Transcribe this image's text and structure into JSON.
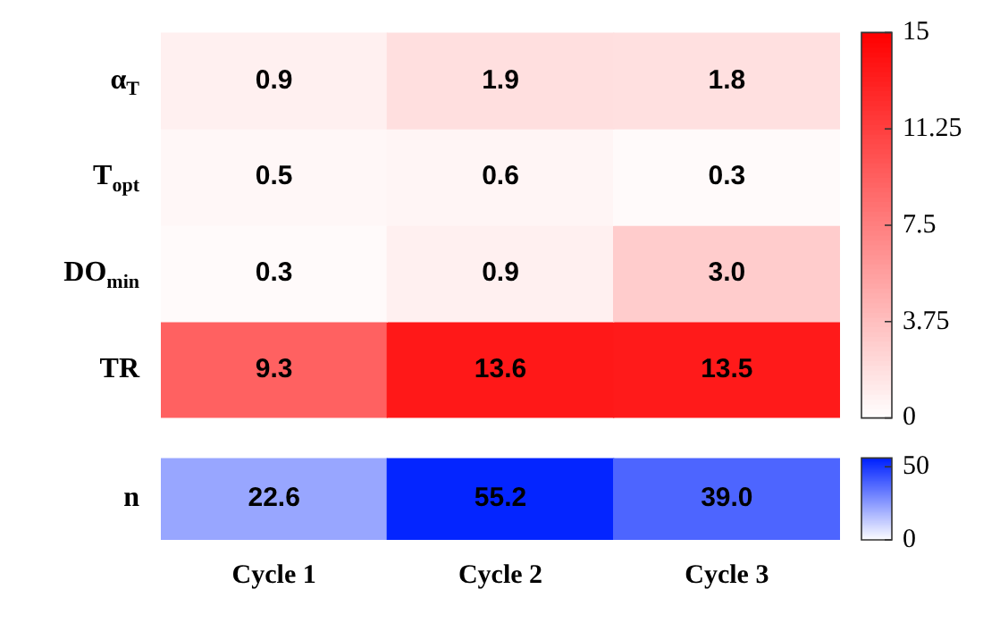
{
  "chart_data": [
    {
      "type": "heatmap",
      "categories": [
        null,
        null,
        null
      ],
      "y_categories": [
        "α$_{T}$",
        "T$_{opt}$",
        "DO$_{min}$",
        "TR"
      ],
      "cells": [
        [
          0.9,
          1.9,
          1.8
        ],
        [
          0.5,
          0.6,
          0.3
        ],
        [
          0.3,
          0.9,
          3.0
        ],
        [
          9.3,
          13.6,
          13.5
        ]
      ],
      "cell_labels": [
        [
          "0.9",
          "1.9",
          "1.8"
        ],
        [
          "0.5",
          "0.6",
          "0.3"
        ],
        [
          "0.3",
          "0.9",
          "3.0"
        ],
        [
          "9.3",
          "13.6",
          "13.5"
        ]
      ],
      "color": "#ff0000",
      "clim": [
        0,
        15
      ],
      "cticks": [
        0,
        3.75,
        7.5,
        11.25,
        15
      ],
      "tick_labels": "y"
    },
    {
      "type": "heatmap",
      "categories": [
        "Cycle 1",
        "Cycle 2",
        "Cycle 3"
      ],
      "y_categories": [
        "n"
      ],
      "cells": [
        [
          22.6,
          55.2,
          39.0
        ]
      ],
      "cell_labels": [
        [
          "22.6",
          "55.2",
          "39.0"
        ]
      ],
      "color": "#0022ff",
      "clim": [
        0,
        56
      ],
      "cticks": [
        0,
        50
      ]
    }
  ]
}
